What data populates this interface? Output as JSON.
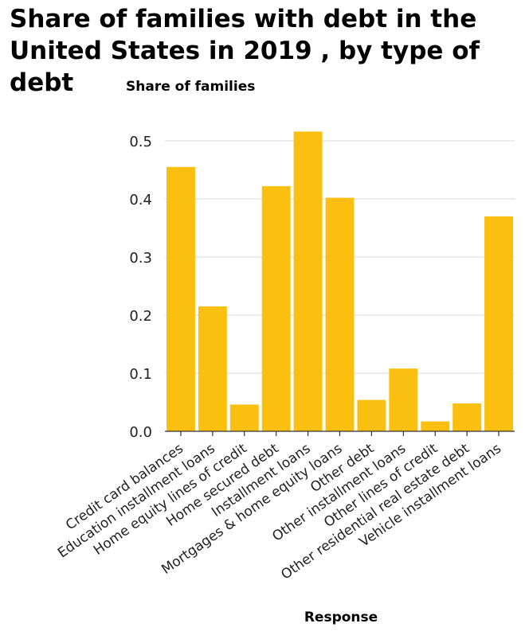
{
  "chart_data": {
    "type": "bar",
    "title": "Share of families with debt in the United States in 2019 , by type of debt",
    "ylabel": "Share of families",
    "xlabel": "Response",
    "ylim": [
      0,
      0.55
    ],
    "yticks": [
      "0.0",
      "0.1",
      "0.2",
      "0.3",
      "0.4",
      "0.5"
    ],
    "grid": true,
    "bar_color": "#fbbf10",
    "categories": [
      "Credit card balances",
      "Education installment loans",
      "Home equity lines of credit",
      "Home secured debt",
      "Installment loans",
      "Mortgages & home equity loans",
      "Other debt",
      "Other installment loans",
      "Other lines of credit",
      "Other residential real estate debt",
      "Vehicle installment loans"
    ],
    "values": [
      0.455,
      0.215,
      0.046,
      0.422,
      0.516,
      0.402,
      0.054,
      0.108,
      0.017,
      0.048,
      0.37
    ]
  }
}
